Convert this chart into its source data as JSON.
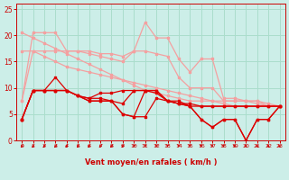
{
  "background_color": "#cceee8",
  "grid_color": "#aaddcc",
  "line_color_light": "#f4a0a0",
  "line_color_dark": "#dd0000",
  "xlabel": "Vent moyen/en rafales ( km/h )",
  "xlabel_color": "#cc0000",
  "tick_color": "#cc0000",
  "ylim": [
    0,
    26
  ],
  "xlim": [
    -0.5,
    23.5
  ],
  "yticks": [
    0,
    5,
    10,
    15,
    20,
    25
  ],
  "xticks": [
    0,
    1,
    2,
    3,
    4,
    5,
    6,
    7,
    8,
    9,
    10,
    11,
    12,
    13,
    14,
    15,
    16,
    17,
    18,
    19,
    20,
    21,
    22,
    23
  ],
  "lines_light": [
    [
      7.5,
      20.5,
      20.5,
      20.5,
      17.0,
      17.0,
      17.0,
      16.5,
      16.5,
      16.0,
      17.0,
      22.5,
      19.5,
      19.5,
      15.5,
      13.0,
      15.5,
      15.5,
      8.0,
      8.0,
      7.5,
      7.5,
      6.5,
      6.5
    ],
    [
      7.5,
      17.0,
      17.0,
      17.0,
      17.0,
      17.0,
      16.5,
      16.0,
      15.5,
      15.0,
      17.0,
      17.0,
      16.5,
      16.0,
      12.0,
      10.0,
      10.0,
      10.0,
      7.5,
      7.5,
      7.5,
      7.0,
      6.5,
      6.5
    ],
    [
      17.0,
      17.0,
      16.0,
      15.0,
      14.0,
      13.5,
      13.0,
      12.5,
      12.0,
      11.5,
      11.0,
      10.5,
      10.0,
      9.5,
      9.0,
      8.5,
      8.0,
      7.5,
      7.0,
      6.5,
      6.5,
      6.5,
      6.5,
      6.5
    ],
    [
      20.5,
      19.5,
      18.5,
      17.5,
      16.5,
      15.5,
      14.5,
      13.5,
      12.5,
      11.5,
      10.5,
      9.5,
      9.0,
      8.5,
      8.0,
      7.5,
      7.5,
      7.5,
      7.5,
      7.5,
      7.5,
      7.5,
      7.0,
      6.5
    ]
  ],
  "lines_dark": [
    [
      4.0,
      9.5,
      9.5,
      9.5,
      9.5,
      8.5,
      8.0,
      9.0,
      9.0,
      9.5,
      9.5,
      9.5,
      9.5,
      7.5,
      7.5,
      6.5,
      6.5,
      6.5,
      6.5,
      6.5,
      6.5,
      6.5,
      6.5,
      6.5
    ],
    [
      4.0,
      9.5,
      9.5,
      9.5,
      9.5,
      8.5,
      8.0,
      8.0,
      7.5,
      7.0,
      9.5,
      9.5,
      9.5,
      7.5,
      7.0,
      7.0,
      6.5,
      6.5,
      6.5,
      6.5,
      6.5,
      6.5,
      6.5,
      6.5
    ],
    [
      4.0,
      9.5,
      9.5,
      12.0,
      9.5,
      8.5,
      7.5,
      7.5,
      7.5,
      5.0,
      4.5,
      9.5,
      9.0,
      7.5,
      7.0,
      6.5,
      4.0,
      2.5,
      4.0,
      4.0,
      0.0,
      4.0,
      4.0,
      6.5
    ],
    [
      4.0,
      9.5,
      9.5,
      9.5,
      9.5,
      8.5,
      7.5,
      7.5,
      7.5,
      5.0,
      4.5,
      4.5,
      8.0,
      7.5,
      7.0,
      6.5,
      4.0,
      2.5,
      4.0,
      4.0,
      0.0,
      4.0,
      4.0,
      6.5
    ]
  ],
  "arrow_angles": [
    225,
    225,
    225,
    225,
    225,
    225,
    225,
    225,
    225,
    225,
    200,
    190,
    190,
    185,
    180,
    175,
    170,
    165,
    160,
    155,
    150,
    145,
    145,
    145
  ]
}
